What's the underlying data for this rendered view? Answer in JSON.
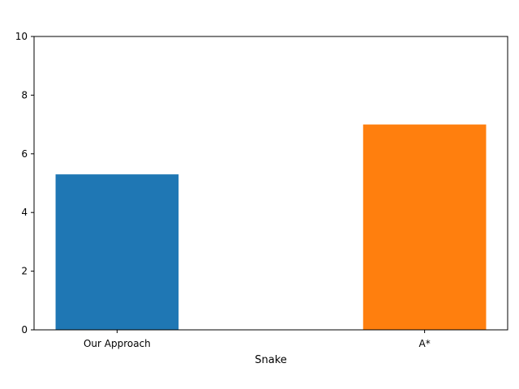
{
  "chart_data": {
    "type": "bar",
    "title": "",
    "xlabel": "Snake",
    "ylabel": "",
    "categories": [
      "Our Approach",
      "A*"
    ],
    "values": [
      5.3,
      7.0
    ],
    "colors": [
      "#1f77b4",
      "#ff7f0e"
    ],
    "ylim": [
      0,
      10
    ],
    "yticks": [
      0,
      2,
      4,
      6,
      8,
      10
    ],
    "grid": false,
    "legend": "none"
  }
}
